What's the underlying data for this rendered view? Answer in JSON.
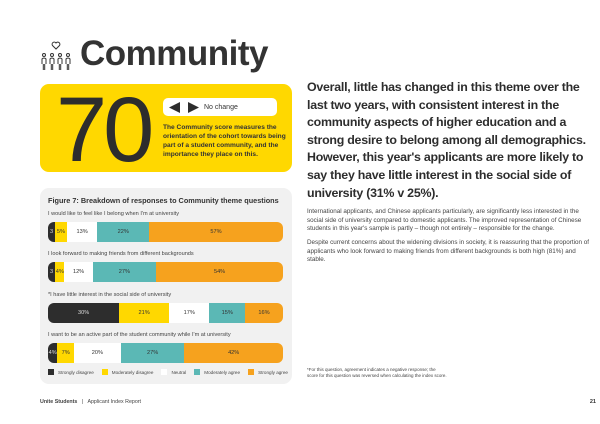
{
  "header": {
    "title": "Community",
    "icon": "people-heart-icon"
  },
  "score_card": {
    "score": "70",
    "change_label": "No change",
    "description": "The Community score measures the orientation of the cohort towards being part of a student community, and the importance they place on this."
  },
  "figure": {
    "title": "Figure 7: Breakdown of responses to Community theme questions",
    "chart_data": {
      "type": "bar",
      "stacked": true,
      "categories": [
        "I would like to feel like I belong when I'm at university",
        "I look forward to making friends from different backgrounds",
        "*I have little interest in the social side of university",
        "I want to be an active part of the student community while I'm at university"
      ],
      "series": [
        {
          "name": "Strongly disagree",
          "color": "#2d2d2d",
          "values": [
            3,
            3,
            30,
            4
          ],
          "labels": [
            "3",
            "3",
            "30%",
            "4%"
          ]
        },
        {
          "name": "Moderately disagree",
          "color": "#ffd800",
          "values": [
            5,
            4,
            21,
            7
          ],
          "labels": [
            "5%",
            "4%",
            "21%",
            "7%"
          ]
        },
        {
          "name": "Neutral",
          "color": "#ffffff",
          "values": [
            13,
            12,
            17,
            20
          ],
          "labels": [
            "13%",
            "12%",
            "17%",
            "20%"
          ]
        },
        {
          "name": "Moderately agree",
          "color": "#5bb8b5",
          "values": [
            22,
            27,
            15,
            27
          ],
          "labels": [
            "22%",
            "27%",
            "15%",
            "27%"
          ]
        },
        {
          "name": "Strongly agree",
          "color": "#f6a21e",
          "values": [
            57,
            54,
            16,
            42
          ],
          "labels": [
            "57%",
            "54%",
            "16%",
            "42%"
          ]
        }
      ],
      "xlim": [
        0,
        100
      ]
    },
    "footnote": "*For this question, agreement indicates a negative response; the score for this question was reversed when calculating the index score."
  },
  "body": {
    "heading": "Overall, little has changed in this theme over the last two years, with consistent interest in the community aspects of higher education and a strong desire to belong among all demographics. However, this year's applicants are more likely to say they have little interest in the social side of university (31% v 25%).",
    "paragraphs": [
      "International applicants, and Chinese applicants particularly, are significantly less interested in the social side of university compared to domestic applicants. The improved representation of Chinese students in this year's sample is partly – though not entirely – responsible for the change.",
      "Despite current concerns about the widening divisions in society, it is reassuring that the proportion of applicants who look forward to making friends from different backgrounds is both high (81%) and stable."
    ]
  },
  "footer": {
    "brand": "Unite Students",
    "separator": "|",
    "report": "Applicant Index Report",
    "page": "21"
  }
}
